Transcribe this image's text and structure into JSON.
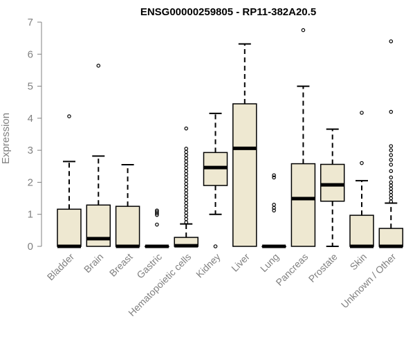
{
  "chart_data": {
    "type": "boxplot",
    "title": "ENSG00000259805 - RP11-382A20.5",
    "xlabel": "",
    "ylabel": "Expression",
    "ylim": [
      0,
      7
    ],
    "yticks": [
      0,
      1,
      2,
      3,
      4,
      5,
      6,
      7
    ],
    "grid": false,
    "colors": {
      "box_fill": "#EEE8D1",
      "stroke": "#000000",
      "axis": "#808080"
    },
    "categories": [
      "Bladder",
      "Brain",
      "Breast",
      "Gastric",
      "Hematopoietic cells",
      "Kidney",
      "Liver",
      "Lung",
      "Pancreas",
      "Prostate",
      "Skin",
      "Unknown / Other"
    ],
    "boxes": [
      {
        "q1": 0,
        "median": 0,
        "q3": 1.16,
        "whisker_low": 0,
        "whisker_high": 2.65,
        "outliers": [
          4.06
        ]
      },
      {
        "q1": 0,
        "median": 0.24,
        "q3": 1.29,
        "whisker_low": 0,
        "whisker_high": 2.82,
        "outliers": [
          5.64
        ]
      },
      {
        "q1": 0,
        "median": 0,
        "q3": 1.25,
        "whisker_low": 0,
        "whisker_high": 2.55,
        "outliers": []
      },
      {
        "q1": 0,
        "median": 0,
        "q3": 0,
        "whisker_low": 0,
        "whisker_high": 0,
        "outliers": [
          0.68,
          0.98,
          1.03,
          1.08,
          1.12
        ]
      },
      {
        "q1": 0,
        "median": 0.02,
        "q3": 0.28,
        "whisker_low": 0,
        "whisker_high": 0.7,
        "outliers": [
          0.75,
          0.85,
          0.95,
          1.05,
          1.15,
          1.25,
          1.35,
          1.45,
          1.55,
          1.65,
          1.75,
          1.85,
          1.95,
          2.05,
          2.15,
          2.25,
          2.35,
          2.45,
          2.55,
          2.65,
          2.75,
          2.85,
          2.95,
          3.05,
          3.68
        ]
      },
      {
        "q1": 1.9,
        "median": 2.46,
        "q3": 2.93,
        "whisker_low": 1.0,
        "whisker_high": 4.15,
        "outliers": [
          0
        ]
      },
      {
        "q1": 0,
        "median": 3.06,
        "q3": 4.45,
        "whisker_low": 0,
        "whisker_high": 6.32,
        "outliers": []
      },
      {
        "q1": 0,
        "median": 0,
        "q3": 0,
        "whisker_low": 0,
        "whisker_high": 0,
        "outliers": [
          1.12,
          1.2,
          1.3,
          2.15,
          2.22
        ]
      },
      {
        "q1": 0,
        "median": 1.49,
        "q3": 2.58,
        "whisker_low": 0,
        "whisker_high": 5.0,
        "outliers": [
          6.75
        ]
      },
      {
        "q1": 1.41,
        "median": 1.92,
        "q3": 2.56,
        "whisker_low": 0,
        "whisker_high": 3.66,
        "outliers": []
      },
      {
        "q1": 0,
        "median": 0,
        "q3": 0.97,
        "whisker_low": 0,
        "whisker_high": 2.05,
        "outliers": [
          2.6,
          4.17
        ]
      },
      {
        "q1": 0,
        "median": 0,
        "q3": 0.56,
        "whisker_low": 0,
        "whisker_high": 1.35,
        "outliers": [
          1.4,
          1.5,
          1.6,
          1.7,
          1.8,
          1.9,
          2.0,
          2.15,
          2.35,
          2.55,
          2.7,
          2.85,
          3.0,
          3.13,
          4.2,
          6.4
        ]
      }
    ]
  }
}
